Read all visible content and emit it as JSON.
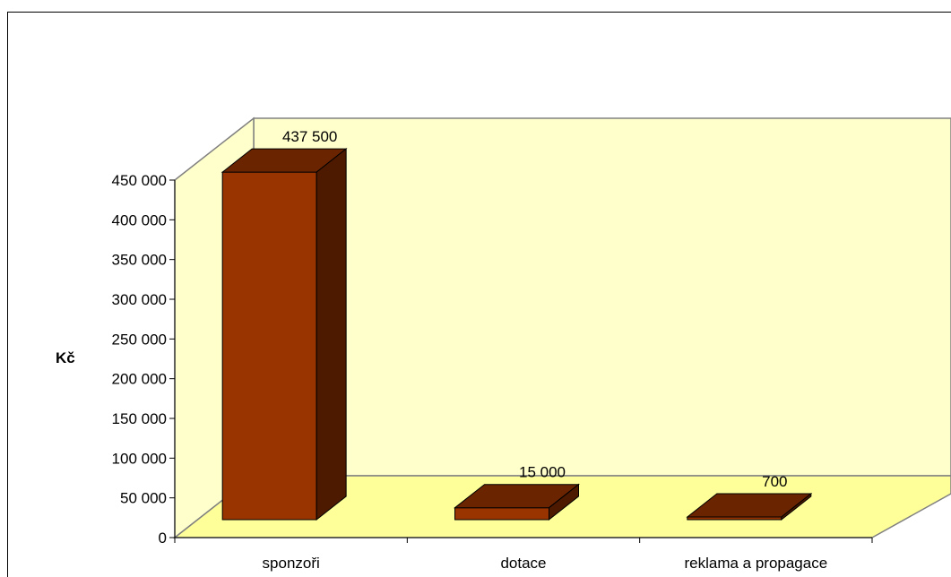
{
  "chart_data": {
    "type": "bar",
    "style": "3d-column",
    "categories": [
      "sponzoři",
      "dotace",
      "reklama a propagace"
    ],
    "values": [
      437500,
      15000,
      700
    ],
    "data_labels": [
      "437 500",
      "15 000",
      "700"
    ],
    "ylabel": "Kč",
    "xlabel": "",
    "title": "",
    "ylim": [
      0,
      450000
    ],
    "yticks": [
      0,
      50000,
      100000,
      150000,
      200000,
      250000,
      300000,
      350000,
      400000,
      450000
    ],
    "ytick_labels": [
      "0",
      "50 000",
      "100 000",
      "150 000",
      "200 000",
      "250 000",
      "300 000",
      "350 000",
      "400 000",
      "450 000"
    ],
    "grid": false,
    "legend": "none",
    "colors": {
      "bar_front": "#993300",
      "bar_top": "#6b2400",
      "bar_side": "#4d1a00",
      "wall": "#ffffcc",
      "floor": "#ffff99",
      "wall_border": "#808080"
    }
  }
}
